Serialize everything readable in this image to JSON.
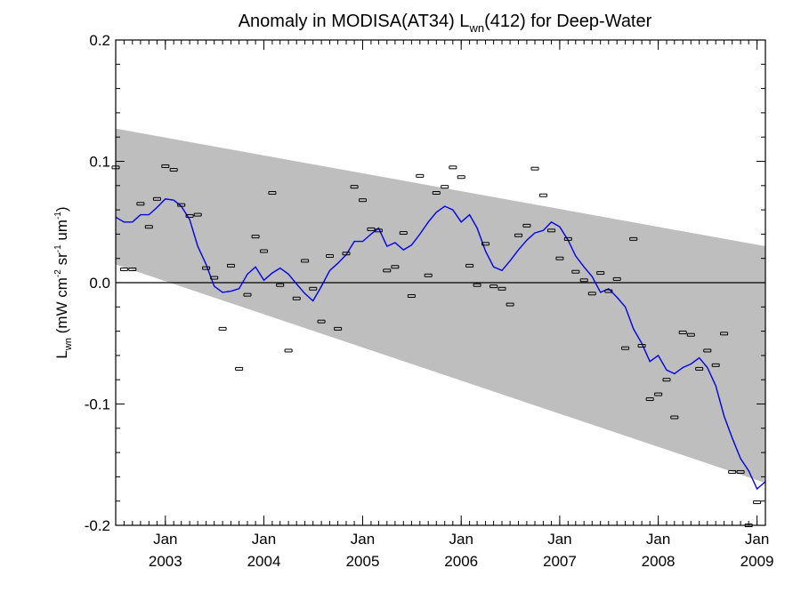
{
  "chart_data": {
    "type": "scatter",
    "title": {
      "main": "Anomaly in MODISA(AT34) L",
      "sub": "wn",
      "suffix": "(412) for Deep-Water"
    },
    "ylabel": {
      "main": "L",
      "sub": "wn",
      "units": " (mW cm",
      "sup1": "-2",
      "mid1": " sr",
      "sup2": "-1",
      "mid2": " um",
      "sup3": "-1",
      "end": ")"
    },
    "xlim": [
      "2002-07-01",
      "2009-02-01"
    ],
    "ylim": [
      -0.2,
      0.2
    ],
    "y_ticks": [
      {
        "value": 0.2,
        "label": "0.2"
      },
      {
        "value": 0.1,
        "label": "0.1"
      },
      {
        "value": 0.0,
        "label": "0.0"
      },
      {
        "value": -0.1,
        "label": "-0.1"
      },
      {
        "value": -0.2,
        "label": "-0.2"
      }
    ],
    "x_ticks": [
      {
        "value": "2003-01-01",
        "month": "Jan",
        "year": "2003"
      },
      {
        "value": "2004-01-01",
        "month": "Jan",
        "year": "2004"
      },
      {
        "value": "2005-01-01",
        "month": "Jan",
        "year": "2005"
      },
      {
        "value": "2006-01-01",
        "month": "Jan",
        "year": "2006"
      },
      {
        "value": "2007-01-01",
        "month": "Jan",
        "year": "2007"
      },
      {
        "value": "2008-01-01",
        "month": "Jan",
        "year": "2008"
      },
      {
        "value": "2009-01-01",
        "month": "Jan",
        "year": "2009"
      }
    ],
    "band": {
      "upper": [
        [
          "2002-07-01",
          0.127
        ],
        [
          "2009-02-01",
          0.03
        ]
      ],
      "lower": [
        [
          "2002-07-01",
          0.015
        ],
        [
          "2009-02-01",
          -0.165
        ]
      ]
    },
    "zero_line": 0.0,
    "points": [
      [
        "2002-07-01",
        0.095
      ],
      [
        "2002-08-01",
        0.011
      ],
      [
        "2002-09-01",
        0.011
      ],
      [
        "2002-10-01",
        0.065
      ],
      [
        "2002-11-01",
        0.046
      ],
      [
        "2002-12-01",
        0.069
      ],
      [
        "2003-01-01",
        0.096
      ],
      [
        "2003-02-01",
        0.093
      ],
      [
        "2003-03-01",
        0.064
      ],
      [
        "2003-04-01",
        0.055
      ],
      [
        "2003-05-01",
        0.056
      ],
      [
        "2003-06-01",
        0.012
      ],
      [
        "2003-07-01",
        0.004
      ],
      [
        "2003-08-01",
        -0.038
      ],
      [
        "2003-09-01",
        0.014
      ],
      [
        "2003-10-01",
        -0.071
      ],
      [
        "2003-11-01",
        -0.01
      ],
      [
        "2003-12-01",
        0.038
      ],
      [
        "2004-01-01",
        0.026
      ],
      [
        "2004-02-01",
        0.074
      ],
      [
        "2004-03-01",
        -0.002
      ],
      [
        "2004-04-01",
        -0.056
      ],
      [
        "2004-05-01",
        -0.013
      ],
      [
        "2004-06-01",
        0.018
      ],
      [
        "2004-07-01",
        -0.005
      ],
      [
        "2004-08-01",
        -0.032
      ],
      [
        "2004-09-01",
        0.022
      ],
      [
        "2004-10-01",
        -0.038
      ],
      [
        "2004-11-01",
        0.024
      ],
      [
        "2004-12-01",
        0.079
      ],
      [
        "2005-01-01",
        0.068
      ],
      [
        "2005-02-01",
        0.044
      ],
      [
        "2005-03-01",
        0.043
      ],
      [
        "2005-04-01",
        0.01
      ],
      [
        "2005-05-01",
        0.013
      ],
      [
        "2005-06-01",
        0.041
      ],
      [
        "2005-07-01",
        -0.011
      ],
      [
        "2005-08-01",
        0.088
      ],
      [
        "2005-09-01",
        0.006
      ],
      [
        "2005-10-01",
        0.074
      ],
      [
        "2005-11-01",
        0.079
      ],
      [
        "2005-12-01",
        0.095
      ],
      [
        "2006-01-01",
        0.087
      ],
      [
        "2006-02-01",
        0.014
      ],
      [
        "2006-03-01",
        -0.002
      ],
      [
        "2006-04-01",
        0.032
      ],
      [
        "2006-05-01",
        -0.003
      ],
      [
        "2006-06-01",
        -0.005
      ],
      [
        "2006-07-01",
        -0.018
      ],
      [
        "2006-08-01",
        0.039
      ],
      [
        "2006-09-01",
        0.047
      ],
      [
        "2006-10-01",
        0.094
      ],
      [
        "2006-11-01",
        0.072
      ],
      [
        "2006-12-01",
        0.043
      ],
      [
        "2007-01-01",
        0.02
      ],
      [
        "2007-02-01",
        0.036
      ],
      [
        "2007-03-01",
        0.009
      ],
      [
        "2007-04-01",
        0.002
      ],
      [
        "2007-05-01",
        -0.009
      ],
      [
        "2007-06-01",
        0.008
      ],
      [
        "2007-07-01",
        -0.007
      ],
      [
        "2007-08-01",
        0.003
      ],
      [
        "2007-09-01",
        -0.054
      ],
      [
        "2007-10-01",
        0.036
      ],
      [
        "2007-11-01",
        -0.052
      ],
      [
        "2007-12-01",
        -0.096
      ],
      [
        "2008-01-01",
        -0.092
      ],
      [
        "2008-02-01",
        -0.08
      ],
      [
        "2008-03-01",
        -0.111
      ],
      [
        "2008-04-01",
        -0.041
      ],
      [
        "2008-05-01",
        -0.043
      ],
      [
        "2008-06-01",
        -0.071
      ],
      [
        "2008-07-01",
        -0.056
      ],
      [
        "2008-08-01",
        -0.068
      ],
      [
        "2008-09-01",
        -0.042
      ],
      [
        "2008-10-01",
        -0.156
      ],
      [
        "2008-11-01",
        -0.156
      ],
      [
        "2008-12-01",
        -0.2
      ],
      [
        "2009-01-01",
        -0.181
      ]
    ],
    "line": [
      [
        "2002-07-01",
        0.054
      ],
      [
        "2002-08-01",
        0.05
      ],
      [
        "2002-09-01",
        0.05
      ],
      [
        "2002-10-01",
        0.056
      ],
      [
        "2002-11-01",
        0.056
      ],
      [
        "2002-12-01",
        0.062
      ],
      [
        "2003-01-01",
        0.069
      ],
      [
        "2003-02-01",
        0.068
      ],
      [
        "2003-03-01",
        0.063
      ],
      [
        "2003-04-01",
        0.052
      ],
      [
        "2003-05-01",
        0.03
      ],
      [
        "2003-06-01",
        0.015
      ],
      [
        "2003-07-01",
        -0.003
      ],
      [
        "2003-08-01",
        -0.008
      ],
      [
        "2003-09-01",
        -0.007
      ],
      [
        "2003-10-01",
        -0.005
      ],
      [
        "2003-11-01",
        0.007
      ],
      [
        "2003-12-01",
        0.013
      ],
      [
        "2004-01-01",
        0.002
      ],
      [
        "2004-02-01",
        0.008
      ],
      [
        "2004-03-01",
        0.012
      ],
      [
        "2004-04-01",
        0.007
      ],
      [
        "2004-05-01",
        -0.001
      ],
      [
        "2004-06-01",
        -0.009
      ],
      [
        "2004-07-01",
        -0.015
      ],
      [
        "2004-08-01",
        -0.003
      ],
      [
        "2004-09-01",
        0.01
      ],
      [
        "2004-10-01",
        0.016
      ],
      [
        "2004-11-01",
        0.023
      ],
      [
        "2004-12-01",
        0.034
      ],
      [
        "2005-01-01",
        0.034
      ],
      [
        "2005-02-01",
        0.04
      ],
      [
        "2005-03-01",
        0.045
      ],
      [
        "2005-04-01",
        0.03
      ],
      [
        "2005-05-01",
        0.033
      ],
      [
        "2005-06-01",
        0.027
      ],
      [
        "2005-07-01",
        0.031
      ],
      [
        "2005-08-01",
        0.04
      ],
      [
        "2005-09-01",
        0.05
      ],
      [
        "2005-10-01",
        0.058
      ],
      [
        "2005-11-01",
        0.063
      ],
      [
        "2005-12-01",
        0.06
      ],
      [
        "2006-01-01",
        0.05
      ],
      [
        "2006-02-01",
        0.056
      ],
      [
        "2006-03-01",
        0.045
      ],
      [
        "2006-04-01",
        0.026
      ],
      [
        "2006-05-01",
        0.013
      ],
      [
        "2006-06-01",
        0.01
      ],
      [
        "2006-07-01",
        0.018
      ],
      [
        "2006-08-01",
        0.027
      ],
      [
        "2006-09-01",
        0.035
      ],
      [
        "2006-10-01",
        0.041
      ],
      [
        "2006-11-01",
        0.043
      ],
      [
        "2006-12-01",
        0.05
      ],
      [
        "2007-01-01",
        0.046
      ],
      [
        "2007-02-01",
        0.035
      ],
      [
        "2007-03-01",
        0.022
      ],
      [
        "2007-04-01",
        0.013
      ],
      [
        "2007-05-01",
        0.005
      ],
      [
        "2007-06-01",
        -0.008
      ],
      [
        "2007-07-01",
        -0.005
      ],
      [
        "2007-08-01",
        -0.012
      ],
      [
        "2007-09-01",
        -0.02
      ],
      [
        "2007-10-01",
        -0.038
      ],
      [
        "2007-11-01",
        -0.05
      ],
      [
        "2007-12-01",
        -0.065
      ],
      [
        "2008-01-01",
        -0.06
      ],
      [
        "2008-02-01",
        -0.072
      ],
      [
        "2008-03-01",
        -0.075
      ],
      [
        "2008-04-01",
        -0.07
      ],
      [
        "2008-05-01",
        -0.067
      ],
      [
        "2008-06-01",
        -0.062
      ],
      [
        "2008-07-01",
        -0.07
      ],
      [
        "2008-08-01",
        -0.085
      ],
      [
        "2008-09-01",
        -0.11
      ],
      [
        "2008-10-01",
        -0.128
      ],
      [
        "2008-11-01",
        -0.145
      ],
      [
        "2008-12-01",
        -0.155
      ],
      [
        "2009-01-01",
        -0.17
      ],
      [
        "2009-02-01",
        -0.164
      ]
    ],
    "colors": {
      "band": "#bebebe",
      "line": "#0000ee",
      "points": "#000000",
      "zero_line": "#000000"
    },
    "grid": false,
    "legend": "none"
  }
}
